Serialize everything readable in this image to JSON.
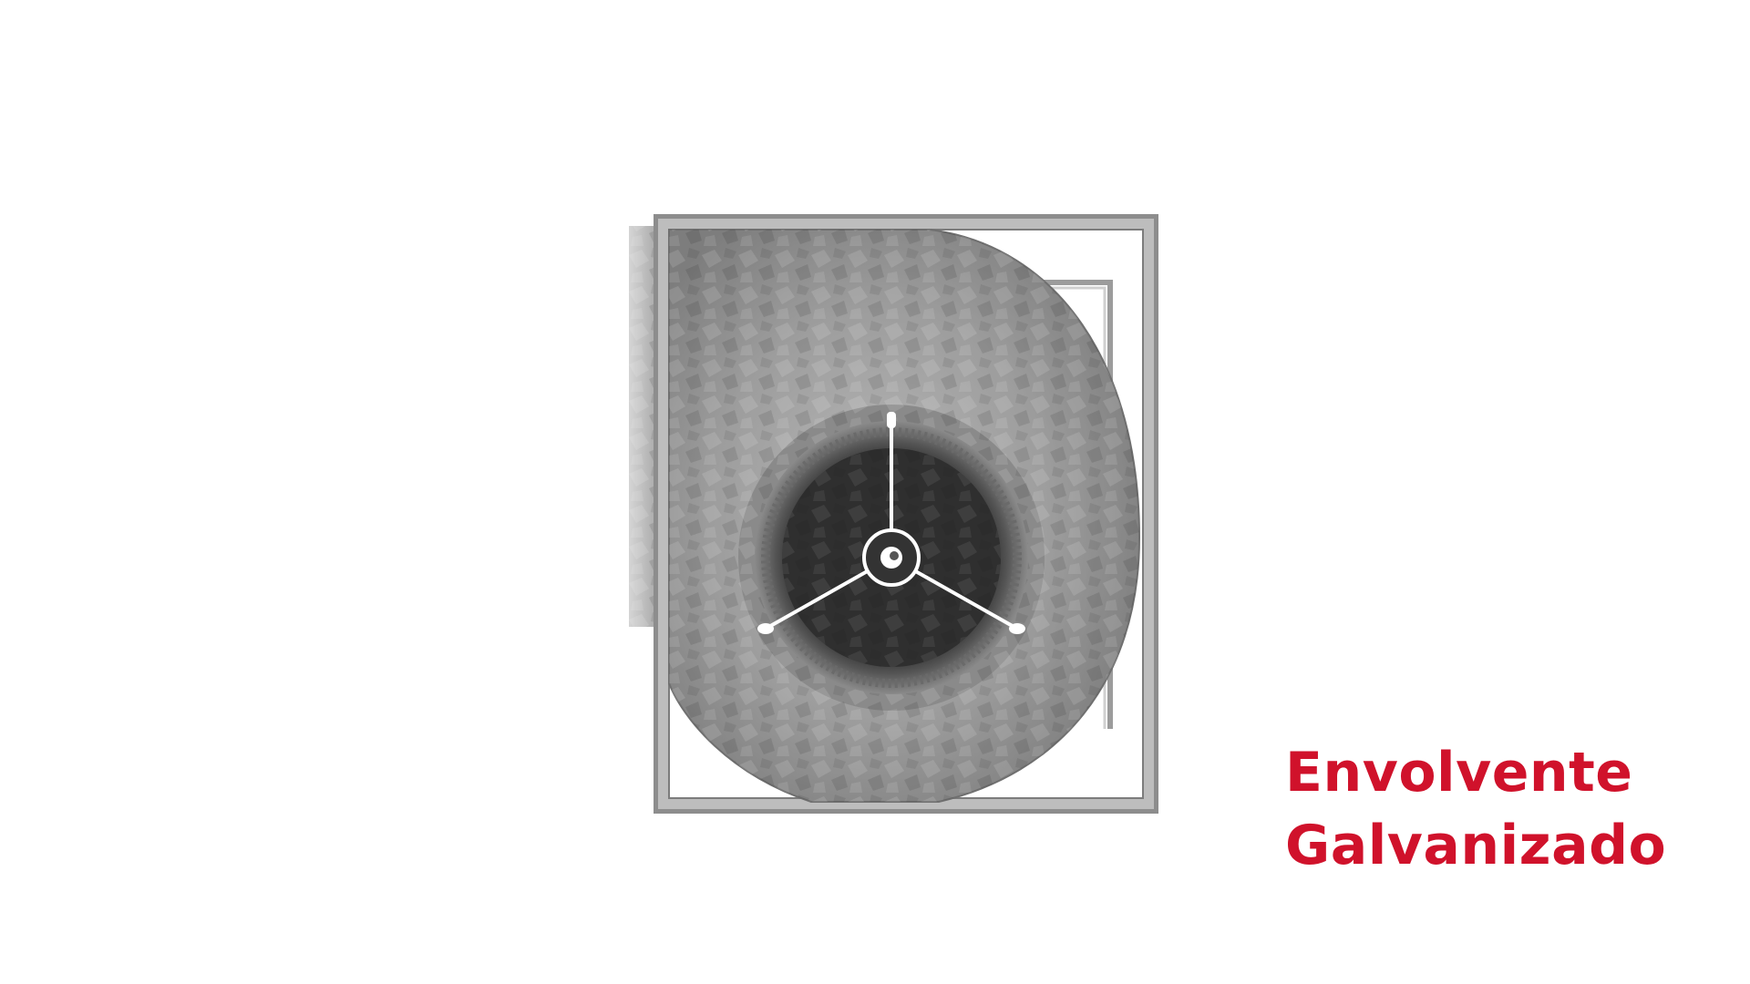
{
  "figure": {
    "subject": "fan-housing",
    "colors": {
      "metal_light": "#c9c9c9",
      "metal_mid": "#9a9a9a",
      "metal_dark": "#5e5e5e",
      "inlet_dark": "#2e2e2e",
      "spoke": "#ffffff"
    }
  },
  "caption": {
    "line1": "Envolvente",
    "line2": "Galvanizado",
    "color": "#d0122b"
  }
}
